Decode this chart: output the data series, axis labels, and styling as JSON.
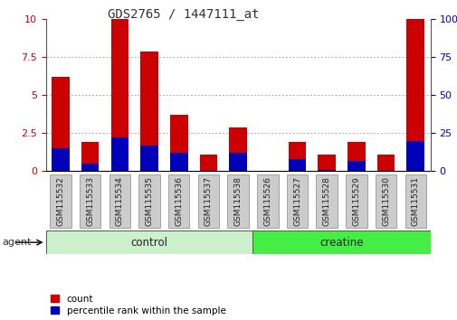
{
  "title": "GDS2765 / 1447111_at",
  "samples": [
    "GSM115532",
    "GSM115533",
    "GSM115534",
    "GSM115535",
    "GSM115536",
    "GSM115537",
    "GSM115538",
    "GSM115526",
    "GSM115527",
    "GSM115528",
    "GSM115529",
    "GSM115530",
    "GSM115531"
  ],
  "count_values": [
    6.2,
    1.9,
    10.0,
    7.9,
    3.7,
    1.1,
    2.9,
    0.05,
    1.9,
    1.1,
    1.9,
    1.1,
    10.0
  ],
  "percentile_values": [
    1.5,
    0.5,
    2.2,
    1.7,
    1.2,
    0.05,
    1.2,
    0.05,
    0.8,
    0.1,
    0.7,
    0.05,
    2.0
  ],
  "groups": [
    {
      "label": "control",
      "start": 0,
      "end": 7,
      "color": "#ccf0cc"
    },
    {
      "label": "creatine",
      "start": 7,
      "end": 13,
      "color": "#44ee44"
    }
  ],
  "agent_label": "agent",
  "left_ylim": [
    0,
    10
  ],
  "right_ylim": [
    0,
    100
  ],
  "left_yticks": [
    0,
    2.5,
    5.0,
    7.5,
    10
  ],
  "left_yticklabels": [
    "0",
    "2.5",
    "5",
    "7.5",
    "10"
  ],
  "right_yticks": [
    0,
    25,
    50,
    75,
    100
  ],
  "right_yticklabels": [
    "0",
    "25",
    "50",
    "75",
    "100%"
  ],
  "bar_color_red": "#cc0000",
  "bar_color_blue": "#0000bb",
  "bar_width": 0.6,
  "grid_color": "#aaaaaa",
  "background_color": "#ffffff",
  "title_color": "#333333",
  "left_tick_color": "#cc0000",
  "right_tick_color": "#0000bb",
  "xtick_box_color": "#cccccc",
  "xtick_box_edge": "#888888",
  "legend_count": "count",
  "legend_pct": "percentile rank within the sample",
  "n_control": 7,
  "n_creatine": 6
}
